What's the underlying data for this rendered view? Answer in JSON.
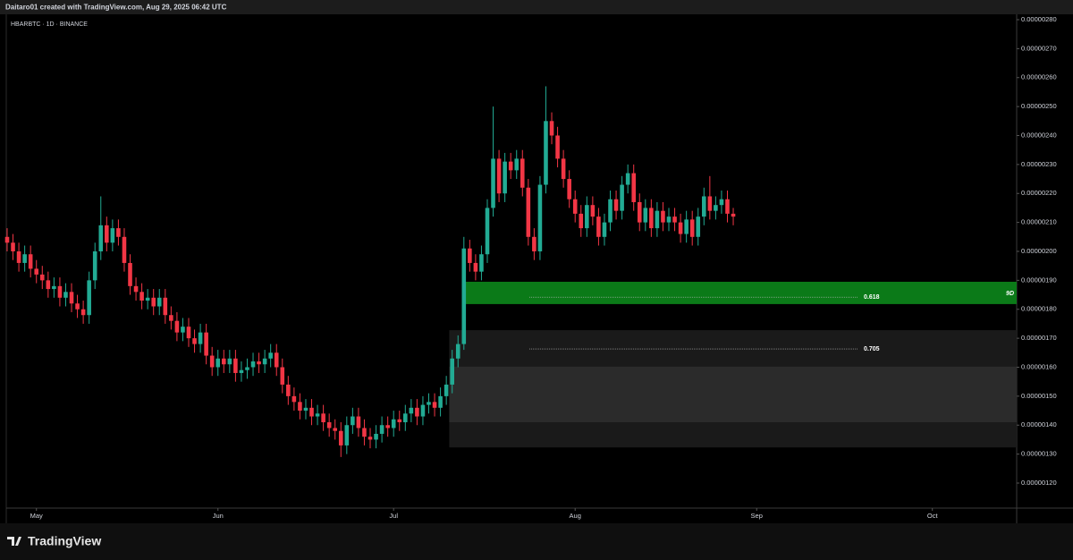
{
  "chart_data": {
    "type": "candlestick",
    "caption": "Daitaro01 created with TradingView.com, Aug 29, 2025 06:42 UTC",
    "title": "HBARBTC · 1D · BINANCE",
    "brand": "TradingView",
    "up_color": "#22ab94",
    "down_color": "#f23645",
    "open": [
      2.05e-06,
      2.03e-06,
      2e-06,
      1.96e-06,
      1.99e-06,
      1.94e-06,
      1.92e-06,
      1.9e-06,
      1.87e-06,
      1.88e-06,
      1.84e-06,
      1.86e-06,
      1.82e-06,
      1.8e-06,
      1.78e-06,
      1.9e-06,
      2e-06,
      2.09e-06,
      2.03e-06,
      2.08e-06,
      2.05e-06,
      1.96e-06,
      1.88e-06,
      1.86e-06,
      1.83e-06,
      1.84e-06,
      1.81e-06,
      1.84e-06,
      1.78e-06,
      1.76e-06,
      1.72e-06,
      1.74e-06,
      1.7e-06,
      1.68e-06,
      1.72e-06,
      1.64e-06,
      1.6e-06,
      1.63e-06,
      1.61e-06,
      1.63e-06,
      1.58e-06,
      1.59e-06,
      1.6e-06,
      1.62e-06,
      1.61e-06,
      1.63e-06,
      1.65e-06,
      1.6e-06,
      1.54e-06,
      1.5e-06,
      1.48e-06,
      1.45e-06,
      1.46e-06,
      1.43e-06,
      1.44e-06,
      1.41e-06,
      1.39e-06,
      1.38e-06,
      1.33e-06,
      1.4e-06,
      1.43e-06,
      1.39e-06,
      1.36e-06,
      1.35e-06,
      1.37e-06,
      1.4e-06,
      1.39e-06,
      1.42e-06,
      1.41e-06,
      1.44e-06,
      1.46e-06,
      1.43e-06,
      1.47e-06,
      1.48e-06,
      1.46e-06,
      1.5e-06,
      1.54e-06,
      1.63e-06,
      1.68e-06,
      2.01e-06,
      1.96e-06,
      1.93e-06,
      1.99e-06,
      2.15e-06,
      2.32e-06,
      2.2e-06,
      2.31e-06,
      2.28e-06,
      2.32e-06,
      2.22e-06,
      2.05e-06,
      2e-06,
      2.23e-06,
      2.45e-06,
      2.4e-06,
      2.32e-06,
      2.25e-06,
      2.18e-06,
      2.13e-06,
      2.08e-06,
      2.16e-06,
      2.12e-06,
      2.05e-06,
      2.1e-06,
      2.18e-06,
      2.14e-06,
      2.23e-06,
      2.27e-06,
      2.17e-06,
      2.1e-06,
      2.15e-06,
      2.08e-06,
      2.14e-06,
      2.1e-06,
      2.12e-06,
      2.1e-06,
      2.06e-06,
      2.11e-06,
      2.05e-06,
      2.12e-06,
      2.19e-06,
      2.14e-06,
      2.16e-06,
      2.18e-06,
      2.13e-06
    ],
    "high": [
      2.08e-06,
      2.06e-06,
      2.03e-06,
      2.02e-06,
      2.02e-06,
      1.97e-06,
      1.95e-06,
      1.93e-06,
      1.91e-06,
      1.91e-06,
      1.89e-06,
      1.89e-06,
      1.85e-06,
      1.83e-06,
      1.93e-06,
      2.03e-06,
      2.19e-06,
      2.12e-06,
      2.11e-06,
      2.11e-06,
      2.08e-06,
      1.99e-06,
      1.91e-06,
      1.89e-06,
      1.87e-06,
      1.87e-06,
      1.87e-06,
      1.87e-06,
      1.81e-06,
      1.79e-06,
      1.77e-06,
      1.77e-06,
      1.73e-06,
      1.75e-06,
      1.75e-06,
      1.67e-06,
      1.66e-06,
      1.66e-06,
      1.66e-06,
      1.66e-06,
      1.62e-06,
      1.63e-06,
      1.65e-06,
      1.65e-06,
      1.66e-06,
      1.68e-06,
      1.68e-06,
      1.63e-06,
      1.57e-06,
      1.53e-06,
      1.51e-06,
      1.49e-06,
      1.49e-06,
      1.47e-06,
      1.47e-06,
      1.44e-06,
      1.42e-06,
      1.41e-06,
      1.43e-06,
      1.46e-06,
      1.46e-06,
      1.42e-06,
      1.39e-06,
      1.4e-06,
      1.43e-06,
      1.43e-06,
      1.45e-06,
      1.45e-06,
      1.47e-06,
      1.49e-06,
      1.49e-06,
      1.5e-06,
      1.51e-06,
      1.51e-06,
      1.53e-06,
      1.57e-06,
      1.66e-06,
      1.71e-06,
      2.05e-06,
      2.04e-06,
      1.99e-06,
      2.02e-06,
      2.18e-06,
      2.5e-06,
      2.35e-06,
      2.34e-06,
      2.34e-06,
      2.35e-06,
      2.35e-06,
      2.25e-06,
      2.08e-06,
      2.26e-06,
      2.57e-06,
      2.48e-06,
      2.43e-06,
      2.35e-06,
      2.28e-06,
      2.21e-06,
      2.16e-06,
      2.19e-06,
      2.19e-06,
      2.15e-06,
      2.13e-06,
      2.21e-06,
      2.21e-06,
      2.26e-06,
      2.3e-06,
      2.3e-06,
      2.2e-06,
      2.18e-06,
      2.18e-06,
      2.17e-06,
      2.17e-06,
      2.15e-06,
      2.15e-06,
      2.13e-06,
      2.14e-06,
      2.14e-06,
      2.15e-06,
      2.22e-06,
      2.26e-06,
      2.19e-06,
      2.21e-06,
      2.21e-06,
      2.15e-06
    ],
    "low": [
      2e-06,
      1.97e-06,
      1.93e-06,
      1.93e-06,
      1.91e-06,
      1.89e-06,
      1.87e-06,
      1.84e-06,
      1.84e-06,
      1.81e-06,
      1.81e-06,
      1.79e-06,
      1.77e-06,
      1.75e-06,
      1.75e-06,
      1.87e-06,
      1.97e-06,
      2e-06,
      2e-06,
      2.02e-06,
      1.93e-06,
      1.85e-06,
      1.83e-06,
      1.8e-06,
      1.8e-06,
      1.78e-06,
      1.78e-06,
      1.75e-06,
      1.73e-06,
      1.69e-06,
      1.69e-06,
      1.67e-06,
      1.65e-06,
      1.65e-06,
      1.61e-06,
      1.57e-06,
      1.57e-06,
      1.58e-06,
      1.58e-06,
      1.55e-06,
      1.55e-06,
      1.56e-06,
      1.57e-06,
      1.58e-06,
      1.58e-06,
      1.6e-06,
      1.57e-06,
      1.51e-06,
      1.47e-06,
      1.45e-06,
      1.42e-06,
      1.42e-06,
      1.4e-06,
      1.4e-06,
      1.38e-06,
      1.36e-06,
      1.35e-06,
      1.29e-06,
      1.3e-06,
      1.37e-06,
      1.36e-06,
      1.33e-06,
      1.32e-06,
      1.32e-06,
      1.34e-06,
      1.36e-06,
      1.36e-06,
      1.38e-06,
      1.38e-06,
      1.41e-06,
      1.4e-06,
      1.4e-06,
      1.44e-06,
      1.43e-06,
      1.43e-06,
      1.47e-06,
      1.51e-06,
      1.6e-06,
      1.66e-06,
      1.93e-06,
      1.9e-06,
      1.9e-06,
      1.96e-06,
      2.12e-06,
      2.17e-06,
      2.17e-06,
      2.25e-06,
      2.25e-06,
      2.19e-06,
      2.02e-06,
      1.97e-06,
      1.97e-06,
      2.2e-06,
      2.37e-06,
      2.29e-06,
      2.22e-06,
      2.15e-06,
      2.1e-06,
      2.05e-06,
      2.05e-06,
      2.09e-06,
      2.02e-06,
      2.02e-06,
      2.07e-06,
      2.11e-06,
      2.11e-06,
      2.2e-06,
      2.14e-06,
      2.07e-06,
      2.07e-06,
      2.05e-06,
      2.05e-06,
      2.07e-06,
      2.07e-06,
      2.07e-06,
      2.03e-06,
      2.03e-06,
      2.02e-06,
      2.02e-06,
      2.09e-06,
      2.11e-06,
      2.11e-06,
      2.13e-06,
      2.1e-06,
      2.09e-06
    ],
    "close": [
      2.03e-06,
      2e-06,
      1.96e-06,
      1.99e-06,
      1.94e-06,
      1.92e-06,
      1.9e-06,
      1.87e-06,
      1.88e-06,
      1.84e-06,
      1.86e-06,
      1.82e-06,
      1.8e-06,
      1.78e-06,
      1.9e-06,
      2e-06,
      2.09e-06,
      2.03e-06,
      2.08e-06,
      2.05e-06,
      1.96e-06,
      1.88e-06,
      1.86e-06,
      1.83e-06,
      1.84e-06,
      1.81e-06,
      1.84e-06,
      1.78e-06,
      1.76e-06,
      1.72e-06,
      1.74e-06,
      1.7e-06,
      1.68e-06,
      1.72e-06,
      1.64e-06,
      1.6e-06,
      1.63e-06,
      1.61e-06,
      1.63e-06,
      1.58e-06,
      1.59e-06,
      1.6e-06,
      1.62e-06,
      1.61e-06,
      1.63e-06,
      1.65e-06,
      1.6e-06,
      1.54e-06,
      1.5e-06,
      1.48e-06,
      1.45e-06,
      1.46e-06,
      1.43e-06,
      1.44e-06,
      1.41e-06,
      1.39e-06,
      1.38e-06,
      1.33e-06,
      1.4e-06,
      1.43e-06,
      1.39e-06,
      1.36e-06,
      1.35e-06,
      1.37e-06,
      1.4e-06,
      1.39e-06,
      1.42e-06,
      1.41e-06,
      1.44e-06,
      1.46e-06,
      1.43e-06,
      1.47e-06,
      1.48e-06,
      1.46e-06,
      1.5e-06,
      1.54e-06,
      1.63e-06,
      1.68e-06,
      2.01e-06,
      1.96e-06,
      1.93e-06,
      1.99e-06,
      2.15e-06,
      2.32e-06,
      2.2e-06,
      2.31e-06,
      2.28e-06,
      2.32e-06,
      2.22e-06,
      2.05e-06,
      2e-06,
      2.23e-06,
      2.45e-06,
      2.4e-06,
      2.32e-06,
      2.25e-06,
      2.18e-06,
      2.13e-06,
      2.08e-06,
      2.16e-06,
      2.12e-06,
      2.05e-06,
      2.1e-06,
      2.18e-06,
      2.14e-06,
      2.23e-06,
      2.27e-06,
      2.17e-06,
      2.1e-06,
      2.15e-06,
      2.08e-06,
      2.14e-06,
      2.1e-06,
      2.12e-06,
      2.1e-06,
      2.06e-06,
      2.11e-06,
      2.05e-06,
      2.12e-06,
      2.19e-06,
      2.14e-06,
      2.16e-06,
      2.18e-06,
      2.13e-06,
      2.12e-06
    ],
    "xticks": [
      {
        "value": 5,
        "label": "May"
      },
      {
        "value": 36,
        "label": "Jun"
      },
      {
        "value": 66,
        "label": "Jul"
      },
      {
        "value": 97,
        "label": "Aug"
      },
      {
        "value": 128,
        "label": "Sep"
      },
      {
        "value": 158,
        "label": "Oct"
      }
    ],
    "xlim": [
      -0.15,
      172.4
    ],
    "ylim": [
      1.1135e-06,
      2.8185e-06
    ],
    "yticks": [
      {
        "value": 1.2e-06,
        "label": "0.00000120"
      },
      {
        "value": 1.3e-06,
        "label": "0.00000130"
      },
      {
        "value": 1.4e-06,
        "label": "0.00000140"
      },
      {
        "value": 1.5e-06,
        "label": "0.00000150"
      },
      {
        "value": 1.6e-06,
        "label": "0.00000160"
      },
      {
        "value": 1.7e-06,
        "label": "0.00000170"
      },
      {
        "value": 1.8e-06,
        "label": "0.00000180"
      },
      {
        "value": 1.9e-06,
        "label": "0.00000190"
      },
      {
        "value": 2e-06,
        "label": "0.00000200"
      },
      {
        "value": 2.1e-06,
        "label": "0.00000210"
      },
      {
        "value": 2.2e-06,
        "label": "0.00000220"
      },
      {
        "value": 2.3e-06,
        "label": "0.00000230"
      },
      {
        "value": 2.4e-06,
        "label": "0.00000240"
      },
      {
        "value": 2.5e-06,
        "label": "0.00000250"
      },
      {
        "value": 2.6e-06,
        "label": "0.00000260"
      },
      {
        "value": 2.7e-06,
        "label": "0.00000270"
      },
      {
        "value": 2.8e-06,
        "label": "0.00000280"
      }
    ],
    "zones": [
      {
        "from": 1.323e-06,
        "to": 1.728e-06,
        "start": 75.5,
        "color": "#1a1a1a"
      },
      {
        "from": 1.41e-06,
        "to": 1.602e-06,
        "start": 75.5,
        "color": "#2b2b2b"
      },
      {
        "from": 1.818e-06,
        "to": 1.895e-06,
        "start": 78,
        "color": "#0b7a18",
        "label": "9D"
      }
    ],
    "levels": [
      {
        "label": "0.618",
        "value": 1.842e-06
      },
      {
        "label": "0.705",
        "value": 1.663e-06
      }
    ]
  }
}
